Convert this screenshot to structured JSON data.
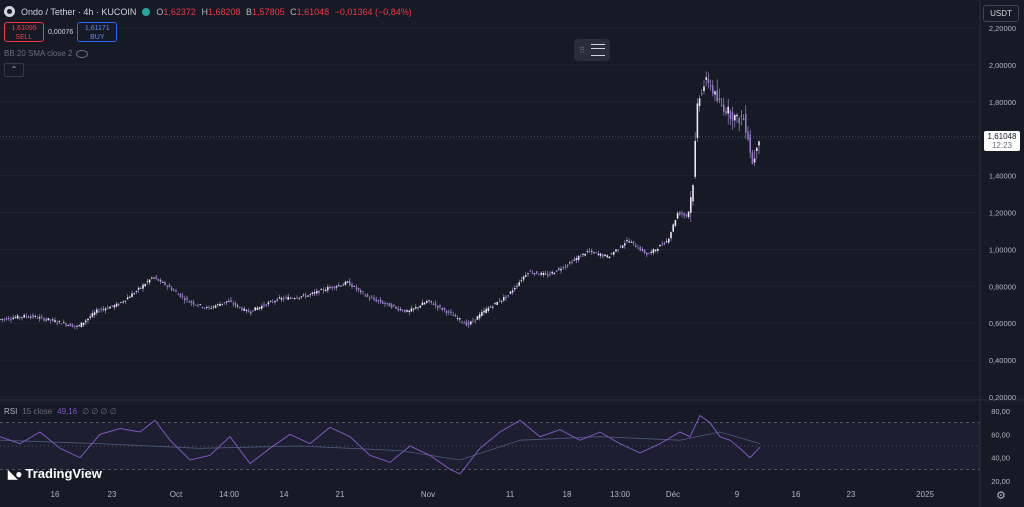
{
  "header": {
    "symbol": "Ondo / Tether · 4h · KUCOIN",
    "o_label": "O",
    "o_value": "1,62372",
    "h_label": "H",
    "h_value": "1,68208",
    "b_label": "B",
    "b_value": "1,57805",
    "c_label": "C",
    "c_value": "1,61048",
    "change": "−0,01364 (−0,84%)"
  },
  "trade": {
    "sell_price": "1,61095",
    "sell_label": "SELL",
    "spread": "0,00076",
    "buy_price": "1,61171",
    "buy_label": "BUY"
  },
  "indicator": {
    "bb_label": "BB 20 SMA close 2"
  },
  "currency": "USDT",
  "last_price": {
    "value": "1,61048",
    "countdown": "12:23"
  },
  "rsi": {
    "label": "RSI",
    "params": "15 close",
    "value": "49,16",
    "extra": "∅ ∅ ∅ ∅"
  },
  "branding": {
    "name": "TradingView"
  },
  "colors": {
    "accent": "#7e57c2",
    "down": "#f23645",
    "up": "#26a69a",
    "candle": "#b39ddb"
  },
  "chart_data": {
    "type": "line",
    "price_axis_ticks": [
      "2,20000",
      "2,00000",
      "1,80000",
      "1,60000",
      "1,40000",
      "1,20000",
      "1,00000",
      "0,80000",
      "0,60000",
      "0,40000",
      "0,20000"
    ],
    "price_ylim": [
      0.2,
      2.2
    ],
    "rsi_axis_ticks": [
      "80,00",
      "60,00",
      "40,00",
      "20,00"
    ],
    "rsi_ylim": [
      20,
      80
    ],
    "rsi_bands": [
      30,
      70
    ],
    "time_axis_labels": [
      "16",
      "23",
      "Oct",
      "14:00",
      "14",
      "21",
      "Nov",
      "11",
      "18",
      "13:00",
      "Déc",
      "9",
      "16",
      "23",
      "2025"
    ],
    "x_range": [
      0,
      1
    ],
    "price_series": [
      {
        "x": 0.0,
        "y": 0.62
      },
      {
        "x": 0.03,
        "y": 0.64
      },
      {
        "x": 0.05,
        "y": 0.62
      },
      {
        "x": 0.08,
        "y": 0.58
      },
      {
        "x": 0.1,
        "y": 0.67
      },
      {
        "x": 0.12,
        "y": 0.7
      },
      {
        "x": 0.14,
        "y": 0.78
      },
      {
        "x": 0.155,
        "y": 0.85
      },
      {
        "x": 0.17,
        "y": 0.8
      },
      {
        "x": 0.19,
        "y": 0.72
      },
      {
        "x": 0.21,
        "y": 0.68
      },
      {
        "x": 0.23,
        "y": 0.72
      },
      {
        "x": 0.25,
        "y": 0.66
      },
      {
        "x": 0.28,
        "y": 0.73
      },
      {
        "x": 0.31,
        "y": 0.75
      },
      {
        "x": 0.33,
        "y": 0.79
      },
      {
        "x": 0.35,
        "y": 0.82
      },
      {
        "x": 0.37,
        "y": 0.74
      },
      {
        "x": 0.39,
        "y": 0.7
      },
      {
        "x": 0.41,
        "y": 0.66
      },
      {
        "x": 0.43,
        "y": 0.72
      },
      {
        "x": 0.45,
        "y": 0.66
      },
      {
        "x": 0.47,
        "y": 0.59
      },
      {
        "x": 0.49,
        "y": 0.68
      },
      {
        "x": 0.51,
        "y": 0.75
      },
      {
        "x": 0.53,
        "y": 0.88
      },
      {
        "x": 0.55,
        "y": 0.86
      },
      {
        "x": 0.57,
        "y": 0.92
      },
      {
        "x": 0.59,
        "y": 0.99
      },
      {
        "x": 0.61,
        "y": 0.96
      },
      {
        "x": 0.63,
        "y": 1.05
      },
      {
        "x": 0.65,
        "y": 0.97
      },
      {
        "x": 0.67,
        "y": 1.05
      },
      {
        "x": 0.68,
        "y": 1.2
      },
      {
        "x": 0.69,
        "y": 1.18
      },
      {
        "x": 0.695,
        "y": 1.35
      },
      {
        "x": 0.7,
        "y": 1.82
      },
      {
        "x": 0.705,
        "y": 1.88
      },
      {
        "x": 0.71,
        "y": 1.92
      },
      {
        "x": 0.72,
        "y": 1.8
      },
      {
        "x": 0.73,
        "y": 1.75
      },
      {
        "x": 0.74,
        "y": 1.7
      },
      {
        "x": 0.745,
        "y": 1.72
      },
      {
        "x": 0.75,
        "y": 1.62
      },
      {
        "x": 0.755,
        "y": 1.45
      },
      {
        "x": 0.76,
        "y": 1.61
      }
    ],
    "rsi_series": [
      {
        "x": 0.0,
        "y": 58
      },
      {
        "x": 0.02,
        "y": 52
      },
      {
        "x": 0.04,
        "y": 62
      },
      {
        "x": 0.06,
        "y": 48
      },
      {
        "x": 0.08,
        "y": 40
      },
      {
        "x": 0.1,
        "y": 60
      },
      {
        "x": 0.12,
        "y": 65
      },
      {
        "x": 0.14,
        "y": 62
      },
      {
        "x": 0.155,
        "y": 72
      },
      {
        "x": 0.17,
        "y": 55
      },
      {
        "x": 0.19,
        "y": 38
      },
      {
        "x": 0.21,
        "y": 42
      },
      {
        "x": 0.23,
        "y": 58
      },
      {
        "x": 0.25,
        "y": 35
      },
      {
        "x": 0.27,
        "y": 48
      },
      {
        "x": 0.29,
        "y": 60
      },
      {
        "x": 0.31,
        "y": 52
      },
      {
        "x": 0.33,
        "y": 66
      },
      {
        "x": 0.35,
        "y": 58
      },
      {
        "x": 0.37,
        "y": 42
      },
      {
        "x": 0.39,
        "y": 36
      },
      {
        "x": 0.41,
        "y": 50
      },
      {
        "x": 0.43,
        "y": 42
      },
      {
        "x": 0.45,
        "y": 30
      },
      {
        "x": 0.46,
        "y": 26
      },
      {
        "x": 0.48,
        "y": 48
      },
      {
        "x": 0.5,
        "y": 62
      },
      {
        "x": 0.52,
        "y": 72
      },
      {
        "x": 0.54,
        "y": 58
      },
      {
        "x": 0.56,
        "y": 64
      },
      {
        "x": 0.58,
        "y": 55
      },
      {
        "x": 0.6,
        "y": 62
      },
      {
        "x": 0.62,
        "y": 52
      },
      {
        "x": 0.64,
        "y": 44
      },
      {
        "x": 0.66,
        "y": 52
      },
      {
        "x": 0.68,
        "y": 62
      },
      {
        "x": 0.69,
        "y": 58
      },
      {
        "x": 0.7,
        "y": 76
      },
      {
        "x": 0.71,
        "y": 70
      },
      {
        "x": 0.72,
        "y": 58
      },
      {
        "x": 0.73,
        "y": 55
      },
      {
        "x": 0.74,
        "y": 48
      },
      {
        "x": 0.75,
        "y": 40
      },
      {
        "x": 0.76,
        "y": 49
      }
    ],
    "rsi_ma_series": [
      {
        "x": 0.0,
        "y": 55
      },
      {
        "x": 0.1,
        "y": 52
      },
      {
        "x": 0.2,
        "y": 48
      },
      {
        "x": 0.3,
        "y": 50
      },
      {
        "x": 0.4,
        "y": 46
      },
      {
        "x": 0.46,
        "y": 38
      },
      {
        "x": 0.52,
        "y": 55
      },
      {
        "x": 0.6,
        "y": 58
      },
      {
        "x": 0.68,
        "y": 55
      },
      {
        "x": 0.72,
        "y": 62
      },
      {
        "x": 0.76,
        "y": 52
      }
    ]
  }
}
